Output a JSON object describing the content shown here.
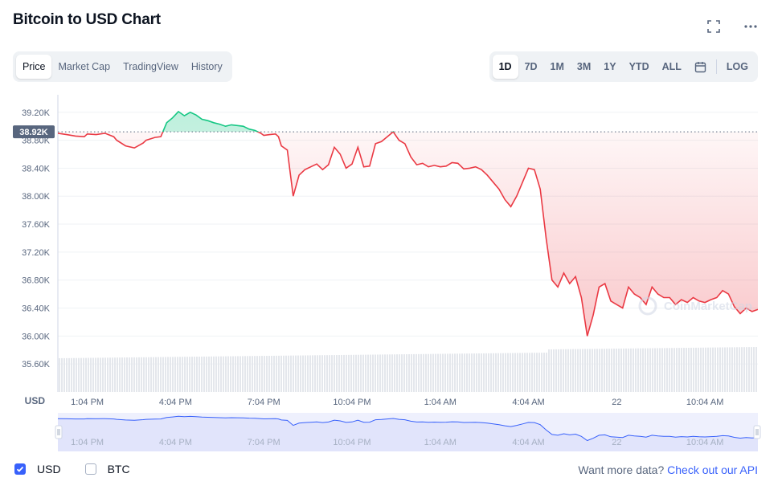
{
  "header": {
    "title": "Bitcoin to USD Chart"
  },
  "view_tabs": [
    {
      "label": "Price",
      "active": true
    },
    {
      "label": "Market Cap",
      "active": false
    },
    {
      "label": "TradingView",
      "active": false
    },
    {
      "label": "History",
      "active": false
    }
  ],
  "range_tabs": [
    {
      "label": "1D",
      "active": true
    },
    {
      "label": "7D",
      "active": false
    },
    {
      "label": "1M",
      "active": false
    },
    {
      "label": "3M",
      "active": false
    },
    {
      "label": "1Y",
      "active": false
    },
    {
      "label": "YTD",
      "active": false
    },
    {
      "label": "ALL",
      "active": false
    }
  ],
  "log_label": "LOG",
  "icons": {
    "fullscreen": "fullscreen-icon",
    "more": "more-icon",
    "calendar": "calendar-icon"
  },
  "colors": {
    "up": "#16c784",
    "down": "#ea3943",
    "accent": "#3861fb",
    "navigator_fill": "#dfe2fb"
  },
  "chart_data": {
    "type": "line",
    "currency_label": "USD",
    "reference_label": "38.92K",
    "reference_value": 38920,
    "y_ticks": [
      "39.20K",
      "38.80K",
      "38.40K",
      "38.00K",
      "37.60K",
      "37.20K",
      "36.80K",
      "36.40K",
      "36.00K",
      "35.60K"
    ],
    "y_tick_values": [
      39200,
      38800,
      38400,
      38000,
      37600,
      37200,
      36800,
      36400,
      36000,
      35600
    ],
    "x_ticks": [
      "1:04 PM",
      "4:04 PM",
      "7:04 PM",
      "10:04 PM",
      "1:04 AM",
      "4:04 AM",
      "22",
      "10:04 AM"
    ],
    "x_tick_positions": [
      1,
      4,
      7,
      10,
      13,
      16,
      19,
      22
    ],
    "x_range": [
      0,
      23.8
    ],
    "y_range": [
      35200,
      39450
    ],
    "series": [
      {
        "x": [
          0,
          0.3,
          0.6,
          0.9,
          1.0,
          1.3,
          1.6,
          1.9,
          2.0,
          2.3,
          2.6,
          2.9,
          3.0,
          3.3,
          3.5,
          3.7,
          3.9,
          4.1,
          4.3,
          4.5,
          4.7,
          4.9,
          5.1,
          5.3,
          5.5,
          5.7,
          5.9,
          6.1,
          6.3,
          6.5,
          6.7,
          6.9,
          7.0,
          7.2,
          7.4,
          7.5,
          7.6,
          7.8,
          8.0,
          8.2,
          8.4,
          8.6,
          8.8,
          9.0,
          9.2,
          9.4,
          9.6,
          9.8,
          10.0,
          10.2,
          10.4,
          10.6,
          10.8,
          11.0,
          11.2,
          11.4,
          11.6,
          11.8,
          12.0,
          12.2,
          12.4,
          12.6,
          12.8,
          13.0,
          13.2,
          13.4,
          13.6,
          13.8,
          14.0,
          14.2,
          14.4,
          14.6,
          14.8,
          15.0,
          15.2,
          15.4,
          15.6,
          15.8,
          16.0,
          16.2,
          16.4,
          16.6,
          16.8,
          17.0,
          17.2,
          17.4,
          17.6,
          17.8,
          18.0,
          18.2,
          18.4,
          18.6,
          18.8,
          19.0,
          19.2,
          19.4,
          19.6,
          19.8,
          20.0,
          20.2,
          20.4,
          20.6,
          20.8,
          21.0,
          21.2,
          21.4,
          21.6,
          21.8,
          22.0,
          22.2,
          22.4,
          22.6,
          22.8,
          23.0,
          23.2,
          23.4,
          23.6,
          23.8
        ],
        "y": [
          38900,
          38880,
          38860,
          38850,
          38890,
          38880,
          38900,
          38850,
          38800,
          38720,
          38690,
          38760,
          38800,
          38840,
          38850,
          39050,
          39120,
          39210,
          39150,
          39200,
          39160,
          39100,
          39080,
          39050,
          39030,
          39000,
          39020,
          39010,
          39000,
          38960,
          38940,
          38900,
          38870,
          38880,
          38890,
          38850,
          38720,
          38660,
          38000,
          38300,
          38380,
          38420,
          38460,
          38380,
          38450,
          38700,
          38600,
          38400,
          38460,
          38700,
          38420,
          38430,
          38750,
          38780,
          38850,
          38920,
          38800,
          38750,
          38560,
          38450,
          38470,
          38420,
          38440,
          38420,
          38430,
          38480,
          38470,
          38390,
          38400,
          38420,
          38380,
          38300,
          38200,
          38100,
          37950,
          37850,
          38000,
          38200,
          38400,
          38380,
          38100,
          37400,
          36800,
          36700,
          36900,
          36750,
          36850,
          36550,
          36000,
          36300,
          36700,
          36750,
          36500,
          36450,
          36400,
          36700,
          36600,
          36550,
          36450,
          36700,
          36600,
          36550,
          36550,
          36450,
          36520,
          36480,
          36550,
          36500,
          36480,
          36520,
          36550,
          36650,
          36600,
          36420,
          36320,
          36400,
          36350,
          36380
        ],
        "color": "#ea3943"
      }
    ],
    "navigator_x_ticks": [
      "1:04 PM",
      "4:04 PM",
      "7:04 PM",
      "10:04 PM",
      "1:04 AM",
      "4:04 AM",
      "22",
      "10:04 AM"
    ],
    "grid": true,
    "watermark": "CoinMarketCap"
  },
  "footer": {
    "usd_label": "USD",
    "btc_label": "BTC",
    "api_prefix": "Want more data?",
    "api_link": "Check out our API"
  }
}
